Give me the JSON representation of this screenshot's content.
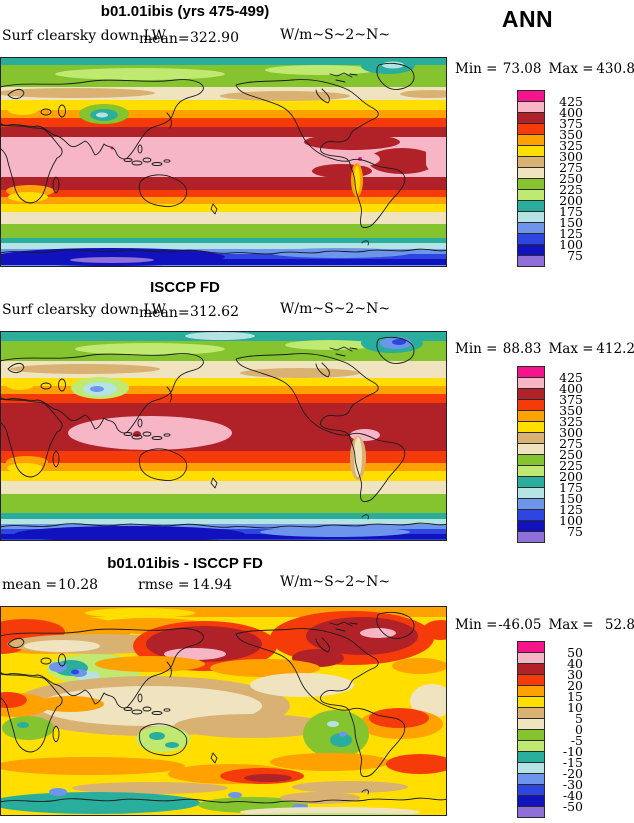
{
  "figure": {
    "season": "ANN",
    "scale_order": [
      "magenta",
      "pink",
      "darkred",
      "red",
      "orange",
      "yellow",
      "tan",
      "cream",
      "olive",
      "lightgreen",
      "teal",
      "cyan",
      "cornflower",
      "blue",
      "navy",
      "purple"
    ]
  },
  "palette": {
    "magenta": "#F5148C",
    "pink": "#F7B6C6",
    "darkred": "#B02228",
    "red": "#F53B0A",
    "orange": "#FFA201",
    "yellow": "#FFDE00",
    "tan": "#D9B273",
    "cream": "#F0E3C0",
    "olive": "#85C32F",
    "lightgreen": "#BFE970",
    "teal": "#29AE9E",
    "cyan": "#B5E3E3",
    "cornflower": "#6E95EC",
    "blue": "#2E46E0",
    "navy": "#1111BE",
    "purple": "#8F6FD8",
    "outline": "#1b1b1b"
  },
  "panels": [
    {
      "title": "b01.01ibis (yrs 475-499)",
      "field": "Surf clearsky down LW",
      "mean_label": "mean=",
      "mean": "322.90",
      "units": "W/m~S~2~N~",
      "min_label": "Min =",
      "min": "73.08",
      "max_label": "Max =",
      "max": "430.85",
      "levels": [
        "425",
        "400",
        "375",
        "350",
        "325",
        "300",
        "275",
        "250",
        "225",
        "200",
        "175",
        "150",
        "125",
        "100",
        "75"
      ]
    },
    {
      "title": "ISCCP FD",
      "field": "Surf clearsky down LW",
      "mean_label": "mean=",
      "mean": "312.62",
      "units": "W/m~S~2~N~",
      "min_label": "Min =",
      "min": "88.83",
      "max_label": "Max =",
      "max": "412.26",
      "levels": [
        "425",
        "400",
        "375",
        "350",
        "325",
        "300",
        "275",
        "250",
        "225",
        "200",
        "175",
        "150",
        "125",
        "100",
        "75"
      ]
    },
    {
      "title": "b01.01ibis - ISCCP FD",
      "mean_label": "mean =",
      "mean": "10.28",
      "rmse_label": "rmse =",
      "rmse": "14.94",
      "units": "W/m~S~2~N~",
      "min_label": "Min =",
      "min": "-46.05",
      "max_label": "Max =",
      "max": "52.80",
      "levels": [
        "50",
        "40",
        "30",
        "20",
        "15",
        "10",
        "5",
        "0",
        "-5",
        "-10",
        "-15",
        "-20",
        "-30",
        "-40",
        "-50"
      ]
    }
  ],
  "chart_data": [
    {
      "type": "heatmap",
      "subtype": "filled-contour global map",
      "title": "b01.01ibis (yrs 475-499)",
      "variable": "Surf clearsky down LW",
      "season": "ANN",
      "units": "W/m~S~2~N~",
      "mean": 322.9,
      "min": 73.08,
      "max": 430.85,
      "contour_levels": [
        75,
        100,
        125,
        150,
        175,
        200,
        225,
        250,
        275,
        300,
        325,
        350,
        375,
        400,
        425
      ],
      "palette_high_to_low": [
        "magenta",
        "pink",
        "darkred",
        "red",
        "orange",
        "yellow",
        "tan",
        "cream",
        "olive",
        "lightgreen",
        "teal",
        "cyan",
        "cornflower",
        "blue",
        "navy",
        "purple"
      ],
      "spatial_pattern": "zonal bands: pink (>400) maximum across tropics, decreasing through dark red, red, orange, yellow, tan/cream and green toward mid-latitudes; teal spots over Greenland and Tibetan Plateau; blue to navy over Antarctica with small purple core (<75)"
    },
    {
      "type": "heatmap",
      "subtype": "filled-contour global map",
      "title": "ISCCP FD",
      "variable": "Surf clearsky down LW",
      "season": "ANN",
      "units": "W/m~S~2~N~",
      "mean": 312.62,
      "min": 88.83,
      "max": 412.26,
      "contour_levels": [
        75,
        100,
        125,
        150,
        175,
        200,
        225,
        250,
        275,
        300,
        325,
        350,
        375,
        400,
        425
      ],
      "palette_high_to_low": [
        "magenta",
        "pink",
        "darkred",
        "red",
        "orange",
        "yellow",
        "tan",
        "cream",
        "olive",
        "lightgreen",
        "teal",
        "cyan",
        "cornflower",
        "blue",
        "navy",
        "purple"
      ],
      "spatial_pattern": "same zonal structure but wider dark-red tropical belt; pink (>400) confined to west Pacific warm pool and a small Amazon spot; blue spot over Greenland, cyan-blue over Tibet; navy over Antarctica"
    },
    {
      "type": "heatmap",
      "subtype": "filled-contour global difference map",
      "title": "b01.01ibis - ISCCP FD",
      "variable": "Surf clearsky down LW difference",
      "season": "ANN",
      "units": "W/m~S~2~N~",
      "mean": 10.28,
      "rmse": 14.94,
      "min": -46.05,
      "max": 52.8,
      "contour_levels": [
        -50,
        -40,
        -30,
        -20,
        -15,
        -10,
        -5,
        0,
        5,
        10,
        15,
        20,
        30,
        40,
        50
      ],
      "palette_high_to_low": [
        "magenta",
        "pink",
        "darkred",
        "red",
        "orange",
        "yellow",
        "tan",
        "cream",
        "olive",
        "lightgreen",
        "teal",
        "cyan",
        "cornflower",
        "blue",
        "navy",
        "purple"
      ],
      "spatial_pattern": "mostly +5 to +20 (yellow/orange); +30 to +50 (dark red/pink) over North Pacific and NE Canada/Greenland; near-zero tan/cream over tropical oceans; negative green/teal/blue patches over Tibetan Plateau, Andes, Australia, southern Africa and around Antarctica"
    }
  ]
}
